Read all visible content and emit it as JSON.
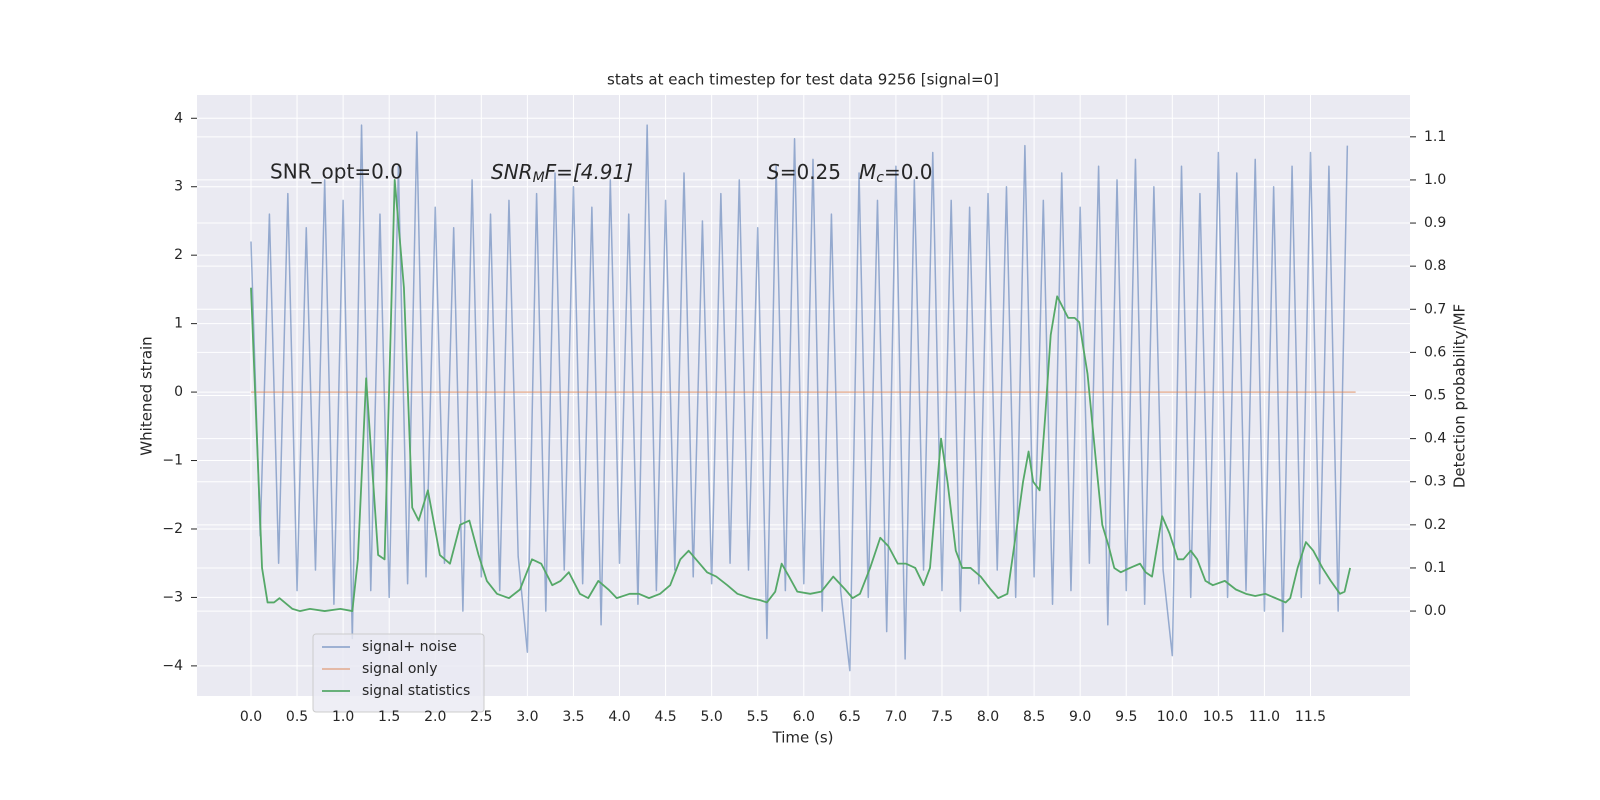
{
  "chart_data": {
    "type": "line",
    "title": "stats at each timestep for test data 9256 [signal=0]",
    "xlabel": "Time (s)",
    "ylabel": "Whitened strain",
    "y2label": "Detection probability/MF",
    "xlim": [
      -0.586,
      12.58
    ],
    "ylim": [
      -4.44,
      4.34
    ],
    "y2lim": [
      -0.197,
      1.197
    ],
    "xticks": [
      {
        "value": 0,
        "label": "0.0"
      },
      0.5,
      {
        "value": 1,
        "label": "1.0"
      },
      1.5,
      {
        "value": 2,
        "label": "2.0"
      },
      2.5,
      {
        "value": 3,
        "label": "3.0"
      },
      3.5,
      {
        "value": 4,
        "label": "4.0"
      },
      4.5,
      {
        "value": 5,
        "label": "5.0"
      },
      5.5,
      {
        "value": 6,
        "label": "6.0"
      },
      6.5,
      {
        "value": 7,
        "label": "7.0"
      },
      7.5,
      {
        "value": 8,
        "label": "8.0"
      },
      8.5,
      {
        "value": 9,
        "label": "9.0"
      },
      9.5,
      {
        "value": 10,
        "label": "10.0"
      },
      10.5,
      {
        "value": 11,
        "label": "11.0"
      },
      11.5
    ],
    "yticks": [
      {
        "value": -4,
        "label": "−4"
      },
      {
        "value": -3,
        "label": "−3"
      },
      {
        "value": -2,
        "label": "−2"
      },
      {
        "value": -1,
        "label": "−1"
      },
      0,
      1,
      2,
      3,
      4
    ],
    "y2ticks": [
      {
        "value": 0,
        "label": "0.0"
      },
      0.1,
      0.2,
      0.3,
      0.4,
      0.5,
      0.6,
      0.7,
      0.8,
      0.9,
      {
        "value": 1,
        "label": "1.0"
      },
      1.1
    ],
    "grid": true,
    "legend": "lower left",
    "annotations": [
      {
        "text": "SNR_opt=0.0"
      },
      {
        "base": "SNR",
        "sub": "M",
        "rest": "F=[4.91]"
      },
      {
        "base": "S",
        "rest": "=0.25"
      },
      {
        "base": "M",
        "sub": "c",
        "rest": "=0.0"
      }
    ],
    "series": [
      {
        "name": "signal+ noise",
        "color": "#4c72b0",
        "x": [
          0.0,
          0.1,
          0.2,
          0.3,
          0.4,
          0.5,
          0.6,
          0.7,
          0.8,
          0.9,
          1.0,
          1.1,
          1.2,
          1.3,
          1.4,
          1.5,
          1.6,
          1.7,
          1.8,
          1.9,
          2.0,
          2.1,
          2.2,
          2.3,
          2.4,
          2.5,
          2.6,
          2.7,
          2.8,
          2.9,
          3.0,
          3.1,
          3.2,
          3.3,
          3.4,
          3.5,
          3.6,
          3.7,
          3.8,
          3.9,
          4.0,
          4.1,
          4.2,
          4.3,
          4.4,
          4.5,
          4.6,
          4.7,
          4.8,
          4.9,
          5.0,
          5.1,
          5.2,
          5.3,
          5.4,
          5.5,
          5.6,
          5.7,
          5.8,
          5.9,
          6.0,
          6.1,
          6.2,
          6.3,
          6.4,
          6.5,
          6.6,
          6.7,
          6.8,
          6.9,
          7.0,
          7.1,
          7.2,
          7.3,
          7.4,
          7.5,
          7.6,
          7.7,
          7.8,
          7.9,
          8.0,
          8.1,
          8.2,
          8.3,
          8.4,
          8.5,
          8.6,
          8.7,
          8.8,
          8.9,
          9.0,
          9.1,
          9.2,
          9.3,
          9.4,
          9.5,
          9.6,
          9.7,
          9.8,
          9.9,
          10.0,
          10.1,
          10.2,
          10.3,
          10.4,
          10.5,
          10.6,
          10.7,
          10.8,
          10.9,
          11.0,
          11.1,
          11.2,
          11.3,
          11.4,
          11.5,
          11.6,
          11.7,
          11.8,
          11.9
        ],
        "values": [
          2.2,
          -2.1,
          2.6,
          -2.5,
          2.9,
          -2.9,
          2.4,
          -2.6,
          3.1,
          -3.1,
          2.8,
          -3.6,
          3.9,
          -2.9,
          2.6,
          -3.0,
          3.3,
          -2.8,
          3.8,
          -2.7,
          2.7,
          -2.5,
          2.4,
          -3.2,
          3.1,
          -2.7,
          2.6,
          -2.9,
          2.8,
          -2.4,
          -3.8,
          2.9,
          -3.2,
          3.2,
          -2.6,
          3.0,
          -2.8,
          2.7,
          -3.4,
          3.1,
          -2.5,
          2.6,
          -3.1,
          3.9,
          -2.9,
          2.8,
          -2.6,
          3.2,
          -2.7,
          2.5,
          -2.8,
          2.9,
          -2.5,
          3.1,
          -2.6,
          2.4,
          -3.6,
          3.3,
          -2.9,
          3.7,
          -2.8,
          3.4,
          -3.2,
          2.6,
          -2.9,
          -4.07,
          3.2,
          -3.0,
          2.8,
          -3.5,
          3.3,
          -3.9,
          3.1,
          -2.6,
          3.5,
          -2.9,
          2.8,
          -3.2,
          2.7,
          -2.8,
          2.9,
          -2.6,
          3.0,
          -3.0,
          3.6,
          -2.7,
          2.8,
          -3.1,
          3.2,
          -2.9,
          2.7,
          -2.5,
          3.3,
          -3.4,
          3.1,
          -2.9,
          3.4,
          -3.1,
          3.0,
          -2.6,
          -3.85,
          3.3,
          -3.0,
          2.9,
          -2.8,
          3.5,
          -3.0,
          3.2,
          -2.9,
          3.4,
          -3.2,
          3.0,
          -3.5,
          3.3,
          -3.0,
          3.5,
          -2.8,
          3.3,
          -3.2,
          3.6
        ]
      },
      {
        "name": "signal only",
        "color": "#dd8452",
        "x": [
          0.0,
          11.99
        ],
        "values": [
          0,
          0
        ]
      },
      {
        "name": "signal statistics",
        "color": "#55a868",
        "axis": "y2",
        "x": [
          0.0,
          0.12,
          0.18,
          0.25,
          0.31,
          0.45,
          0.53,
          0.64,
          0.8,
          0.97,
          1.1,
          1.16,
          1.25,
          1.31,
          1.38,
          1.45,
          1.56,
          1.66,
          1.75,
          1.82,
          1.92,
          2.05,
          2.16,
          2.27,
          2.37,
          2.47,
          2.56,
          2.67,
          2.8,
          2.92,
          3.05,
          3.15,
          3.27,
          3.36,
          3.45,
          3.57,
          3.66,
          3.77,
          3.88,
          3.97,
          4.11,
          4.21,
          4.32,
          4.44,
          4.55,
          4.66,
          4.75,
          4.83,
          4.95,
          5.05,
          5.17,
          5.28,
          5.42,
          5.53,
          5.6,
          5.69,
          5.76,
          5.84,
          5.93,
          6.07,
          6.19,
          6.32,
          6.45,
          6.53,
          6.61,
          6.72,
          6.83,
          6.92,
          7.02,
          7.11,
          7.21,
          7.3,
          7.37,
          7.49,
          7.56,
          7.65,
          7.72,
          7.81,
          7.92,
          8.03,
          8.11,
          8.21,
          8.31,
          8.38,
          8.44,
          8.49,
          8.56,
          8.62,
          8.68,
          8.75,
          8.87,
          8.94,
          8.99,
          9.08,
          9.17,
          9.24,
          9.31,
          9.37,
          9.44,
          9.54,
          9.65,
          9.71,
          9.78,
          9.89,
          9.97,
          10.06,
          10.12,
          10.2,
          10.27,
          10.36,
          10.44,
          10.57,
          10.69,
          10.8,
          10.9,
          11.01,
          11.12,
          11.23,
          11.28,
          11.36,
          11.45,
          11.53,
          11.63,
          11.72,
          11.82,
          11.87,
          11.93
        ],
        "values": [
          0.75,
          0.1,
          0.02,
          0.02,
          0.03,
          0.005,
          0.0,
          0.005,
          0.0,
          0.005,
          0.0,
          0.12,
          0.54,
          0.35,
          0.13,
          0.12,
          1.0,
          0.75,
          0.24,
          0.21,
          0.28,
          0.13,
          0.11,
          0.2,
          0.21,
          0.13,
          0.07,
          0.04,
          0.03,
          0.05,
          0.12,
          0.11,
          0.06,
          0.07,
          0.09,
          0.04,
          0.03,
          0.07,
          0.05,
          0.03,
          0.04,
          0.04,
          0.03,
          0.04,
          0.06,
          0.12,
          0.14,
          0.12,
          0.09,
          0.08,
          0.06,
          0.04,
          0.03,
          0.025,
          0.02,
          0.045,
          0.11,
          0.08,
          0.045,
          0.04,
          0.045,
          0.08,
          0.05,
          0.03,
          0.04,
          0.1,
          0.17,
          0.15,
          0.11,
          0.11,
          0.1,
          0.06,
          0.1,
          0.4,
          0.3,
          0.14,
          0.1,
          0.1,
          0.08,
          0.05,
          0.03,
          0.04,
          0.19,
          0.3,
          0.37,
          0.3,
          0.28,
          0.45,
          0.64,
          0.73,
          0.68,
          0.68,
          0.67,
          0.55,
          0.35,
          0.2,
          0.15,
          0.1,
          0.09,
          0.1,
          0.11,
          0.09,
          0.08,
          0.22,
          0.18,
          0.12,
          0.12,
          0.14,
          0.12,
          0.07,
          0.06,
          0.07,
          0.05,
          0.04,
          0.035,
          0.04,
          0.03,
          0.02,
          0.03,
          0.1,
          0.16,
          0.14,
          0.1,
          0.07,
          0.04,
          0.045,
          0.1
        ]
      }
    ]
  }
}
